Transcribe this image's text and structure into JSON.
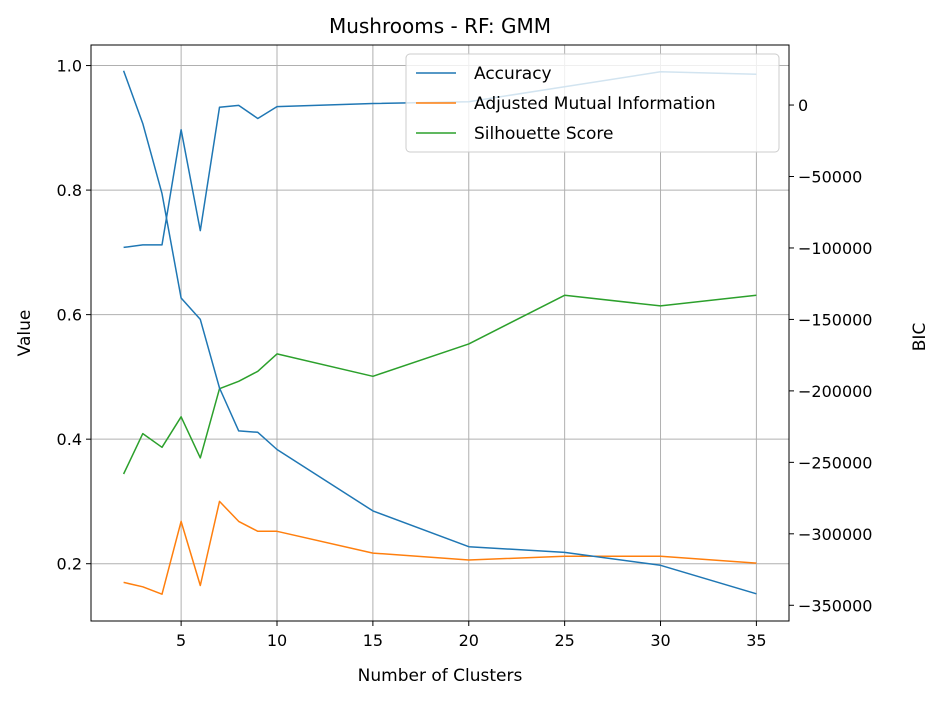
{
  "chart_data": {
    "type": "line",
    "title": "Mushrooms - RF: GMM",
    "xlabel": "Number of Clusters",
    "ylabel": "Value",
    "y2label": "BIC",
    "xlim": [
      0.3,
      36.7
    ],
    "ylim": [
      0.108,
      1.033
    ],
    "y2lim": [
      -361000,
      42000
    ],
    "xticks": [
      5,
      10,
      15,
      20,
      25,
      30,
      35
    ],
    "yticks": [
      0.2,
      0.4,
      0.6,
      0.8,
      1.0
    ],
    "ytick_labels": [
      "0.2",
      "0.4",
      "0.6",
      "0.8",
      "1.0"
    ],
    "y2ticks": [
      0,
      -50000,
      -100000,
      -150000,
      -200000,
      -250000,
      -300000,
      -350000
    ],
    "y2tick_labels": [
      "0",
      "−50000",
      "−100000",
      "−150000",
      "−200000",
      "−250000",
      "−300000",
      "−350000"
    ],
    "grid": true,
    "legend_position": "upper right",
    "x": [
      2,
      3,
      4,
      5,
      6,
      7,
      8,
      9,
      10,
      15,
      20,
      25,
      30,
      35
    ],
    "series": [
      {
        "name": "Accuracy",
        "color": "#1f77b4",
        "axis": "left",
        "values": [
          0.708,
          0.712,
          0.712,
          0.897,
          0.735,
          0.933,
          0.936,
          0.915,
          0.934,
          0.939,
          0.942,
          0.966,
          0.99,
          0.986
        ]
      },
      {
        "name": "Adjusted Mutual Information",
        "color": "#ff7f0e",
        "axis": "left",
        "values": [
          0.17,
          0.163,
          0.151,
          0.268,
          0.165,
          0.3,
          0.268,
          0.252,
          0.252,
          0.217,
          0.206,
          0.212,
          0.212,
          0.201
        ]
      },
      {
        "name": "Silhouette Score",
        "color": "#2ca02c",
        "axis": "left",
        "values": [
          0.344,
          0.409,
          0.387,
          0.436,
          0.37,
          0.481,
          0.493,
          0.509,
          0.537,
          0.501,
          0.553,
          0.631,
          0.614,
          0.631
        ]
      },
      {
        "name": "",
        "color": "#1f77b4",
        "axis": "right",
        "values": [
          24000,
          -13000,
          -62000,
          -135000,
          -150000,
          -198000,
          -228000,
          -229000,
          -241000,
          -284000,
          -309000,
          -313000,
          -322000,
          -342000
        ]
      }
    ]
  }
}
